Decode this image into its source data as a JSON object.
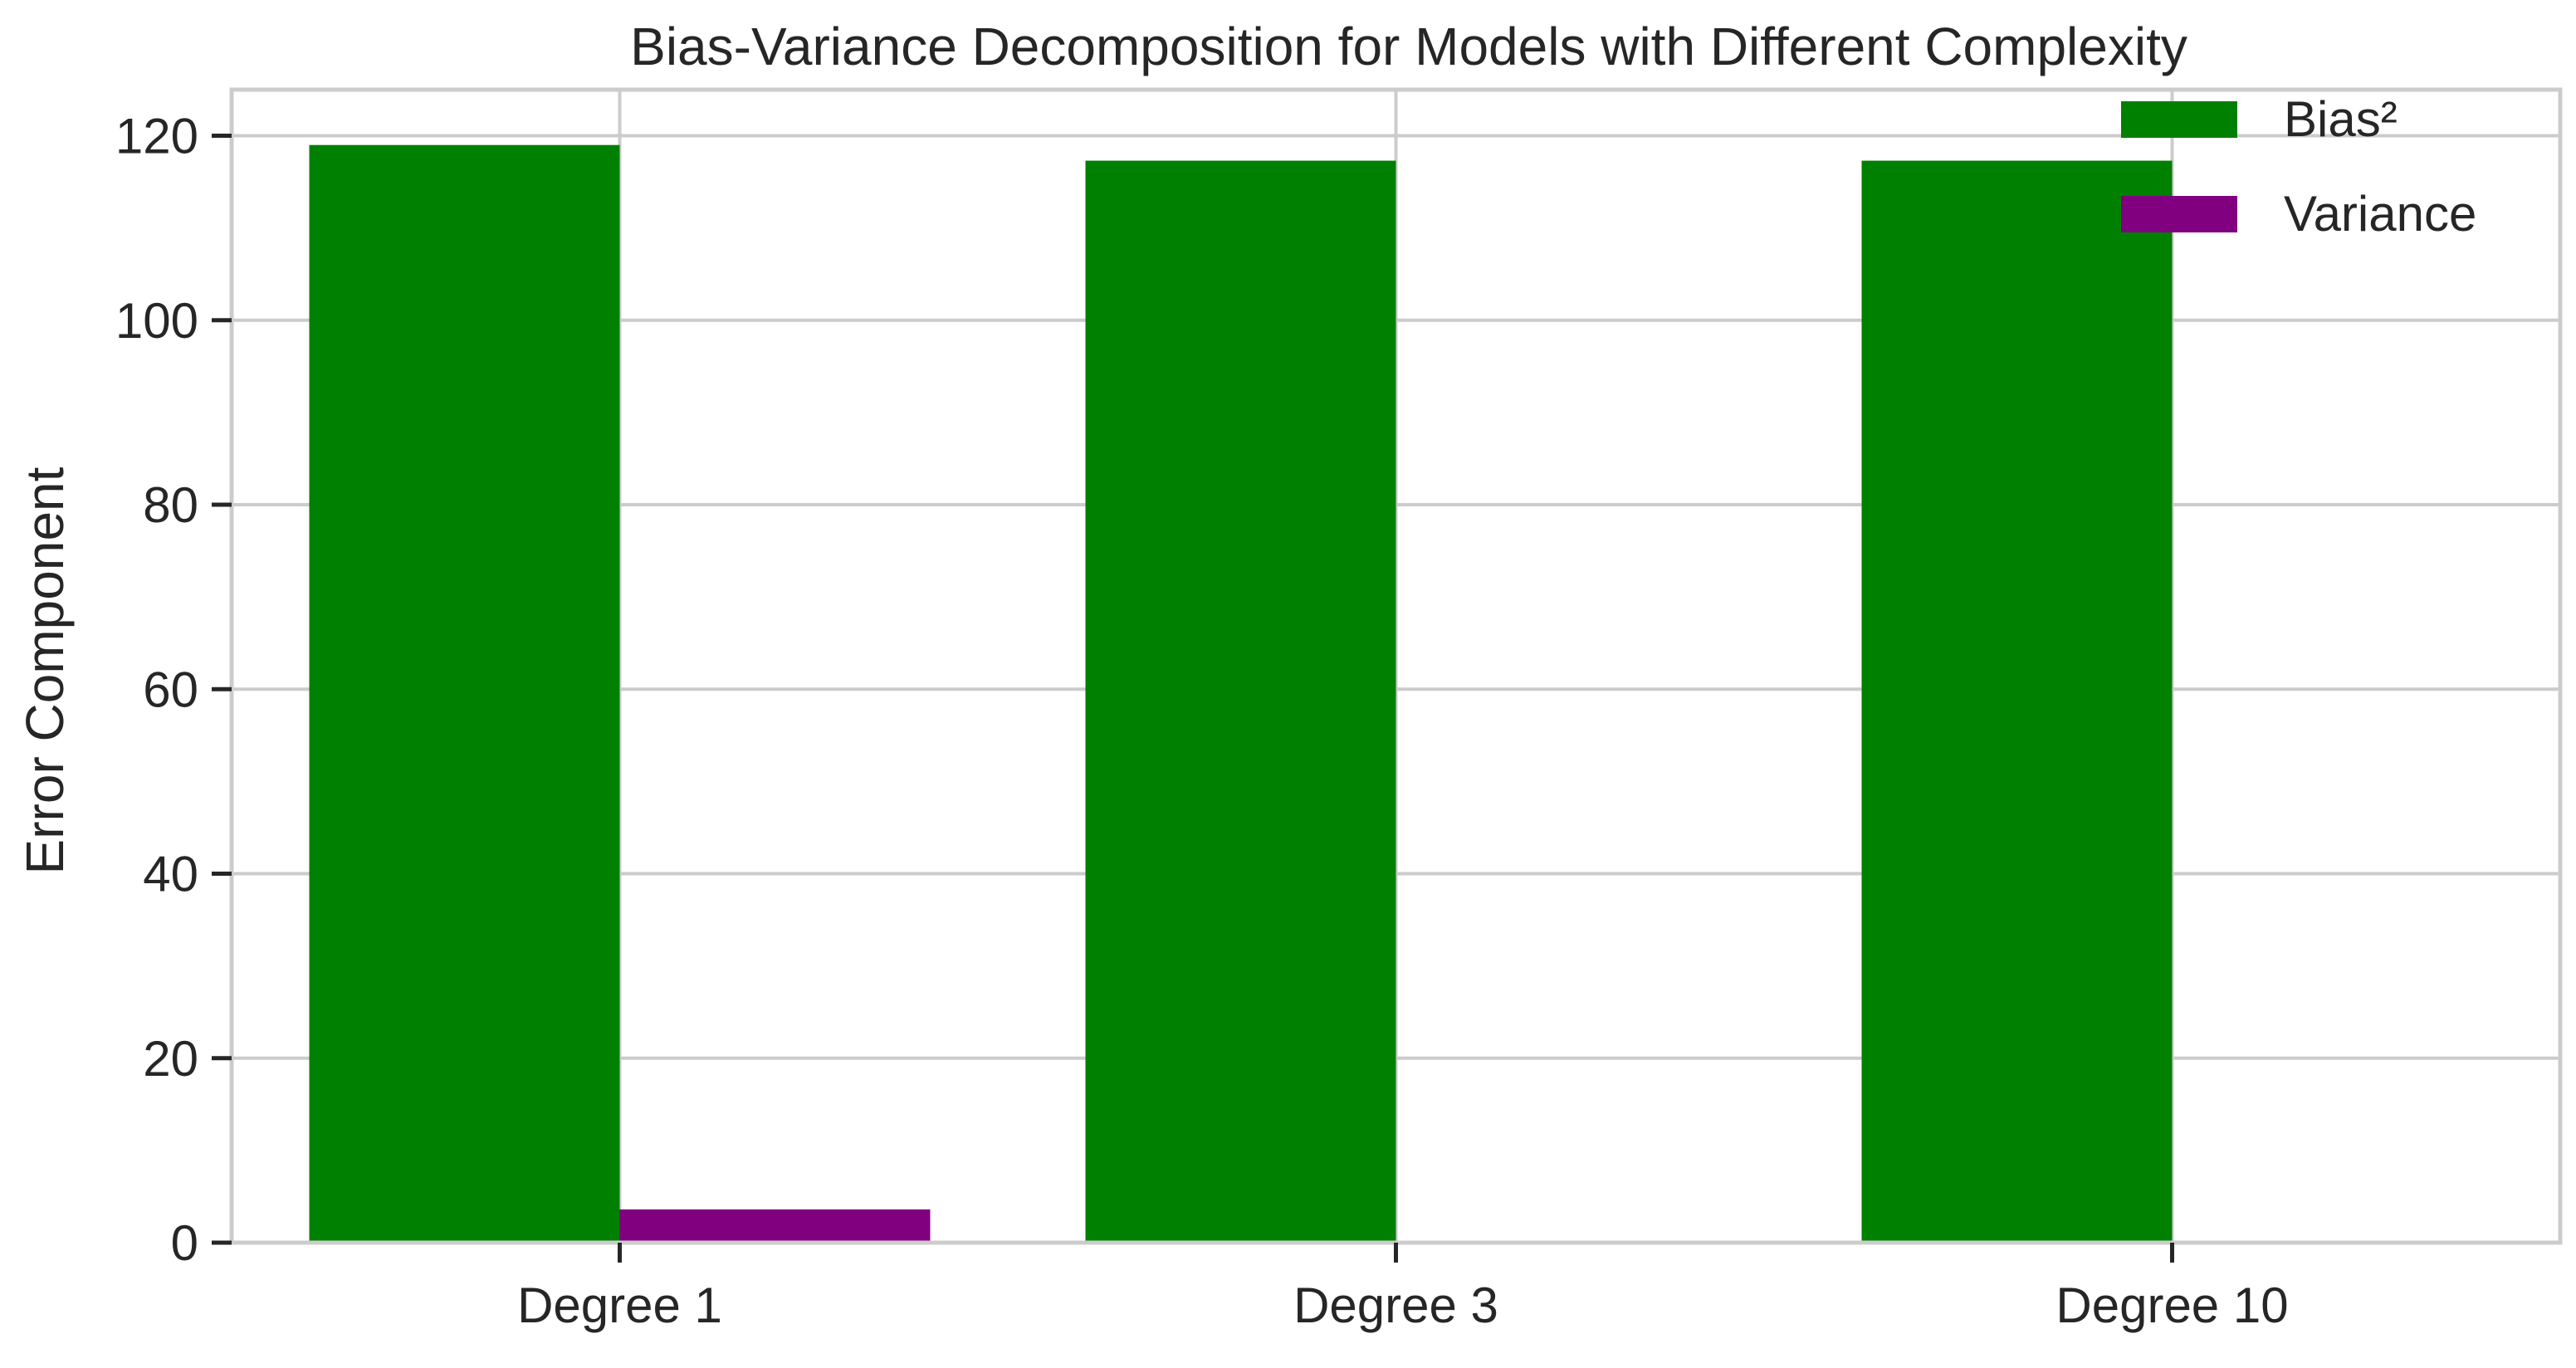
{
  "chart_data": {
    "type": "bar",
    "title": "Bias-Variance Decomposition for Models with Different Complexity",
    "xlabel": "",
    "ylabel": "Error Component",
    "categories": [
      "Degree 1",
      "Degree 3",
      "Degree 10"
    ],
    "series": [
      {
        "name": "Bias²",
        "color": "#008000",
        "values": [
          119.0,
          117.3,
          117.3
        ]
      },
      {
        "name": "Variance",
        "color": "#800080",
        "values": [
          3.6,
          0.0,
          0.0
        ]
      }
    ],
    "ylim": [
      0,
      125
    ],
    "yticks": [
      0,
      20,
      40,
      60,
      80,
      100,
      120
    ],
    "grid": true,
    "legend_position": "top-right",
    "colors": {
      "grid": "#cccccc",
      "spine": "#cccccc",
      "text": "#262626",
      "background": "#ffffff"
    }
  }
}
